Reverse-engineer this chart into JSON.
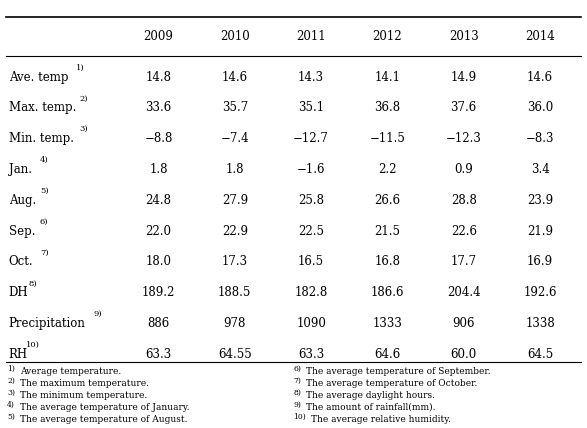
{
  "row_labels": [
    "Ave. temp",
    "Max. temp.",
    "Min. temp.",
    "Jan.",
    "Aug.",
    "Sep.",
    "Oct.",
    "DH",
    "Precipitation",
    "RH"
  ],
  "row_superscripts": [
    "1)",
    "2)",
    "3)",
    "4)",
    "5)",
    "6)",
    "7)",
    "8)",
    "9)",
    "10)"
  ],
  "data": [
    [
      "14.8",
      "14.6",
      "14.3",
      "14.1",
      "14.9",
      "14.6"
    ],
    [
      "33.6",
      "35.7",
      "35.1",
      "36.8",
      "37.6",
      "36.0"
    ],
    [
      "−8.8",
      "−7.4",
      "−12.7",
      "−11.5",
      "−12.3",
      "−8.3"
    ],
    [
      "1.8",
      "1.8",
      "−1.6",
      "2.2",
      "0.9",
      "3.4"
    ],
    [
      "24.8",
      "27.9",
      "25.8",
      "26.6",
      "28.8",
      "23.9"
    ],
    [
      "22.0",
      "22.9",
      "22.5",
      "21.5",
      "22.6",
      "21.9"
    ],
    [
      "18.0",
      "17.3",
      "16.5",
      "16.8",
      "17.7",
      "16.9"
    ],
    [
      "189.2",
      "188.5",
      "182.8",
      "186.6",
      "204.4",
      "192.6"
    ],
    [
      "886",
      "978",
      "1090",
      "1333",
      "906",
      "1338"
    ],
    [
      "63.3",
      "64.55",
      "63.3",
      "64.6",
      "60.0",
      "64.5"
    ]
  ],
  "years": [
    "2009",
    "2010",
    "2011",
    "2012",
    "2013",
    "2014"
  ],
  "footnotes_left": [
    [
      "1)",
      "Average temperature."
    ],
    [
      "2)",
      "The maximum temperature."
    ],
    [
      "3)",
      "The minimum temperature."
    ],
    [
      "4)",
      "The average temperature of January."
    ],
    [
      "5)",
      "The average temperature of August."
    ]
  ],
  "footnotes_right": [
    [
      "6)",
      "The average temperature of September."
    ],
    [
      "7)",
      "The average temperature of October."
    ],
    [
      "8)",
      "The average daylight hours."
    ],
    [
      "9)",
      "The amount of rainfall(mm)."
    ],
    [
      "10)",
      "The average relative humidity."
    ]
  ],
  "font_size": 8.5,
  "sup_font_size": 6.0,
  "footnote_font_size": 6.5,
  "footnote_sup_font_size": 5.5
}
